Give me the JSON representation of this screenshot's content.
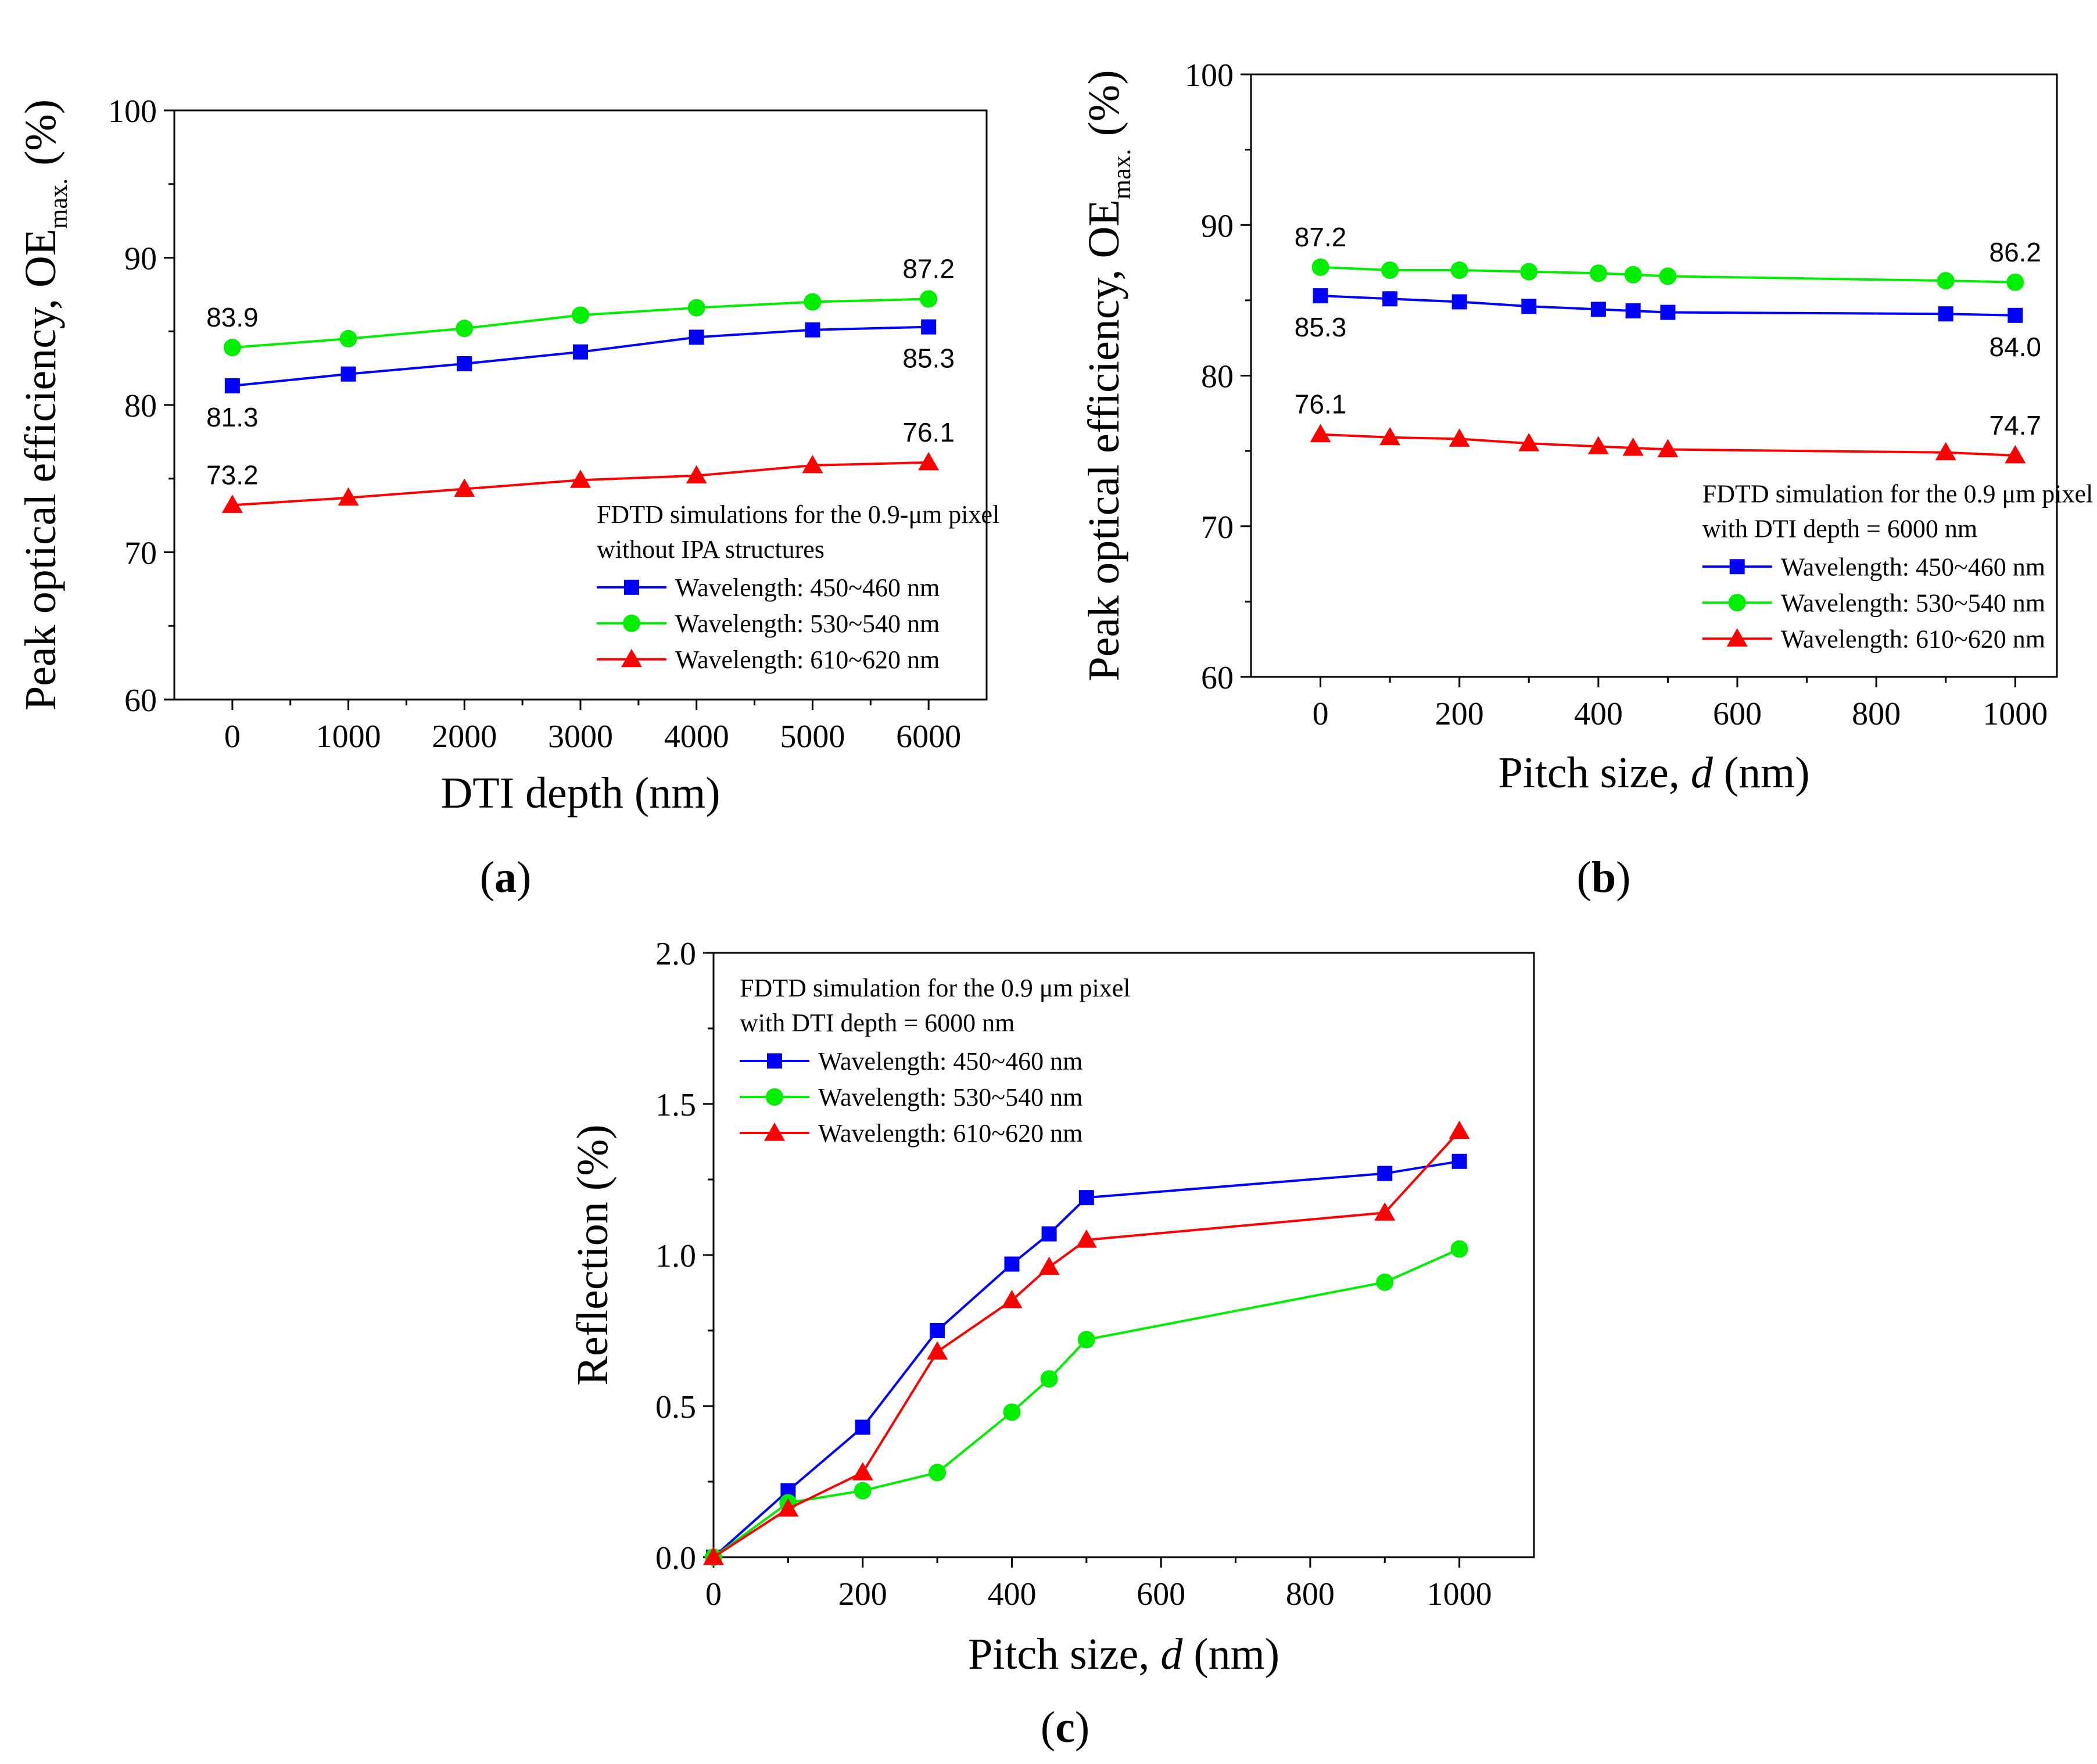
{
  "figure": {
    "panels": [
      "(a)",
      "(b)",
      "(c)"
    ]
  },
  "chart_data": [
    {
      "id": "a",
      "panel_label": "a",
      "type": "line",
      "title": "",
      "xlabel": "DTI depth (nm)",
      "ylabel_main": "Peak optical efficiency, OE",
      "ylabel_sub": "max.",
      "ylabel_unit": "(%)",
      "xlim": [
        -500,
        6500
      ],
      "ylim": [
        60,
        100
      ],
      "xticks": [
        0,
        1000,
        2000,
        3000,
        4000,
        5000,
        6000
      ],
      "yticks": [
        60,
        70,
        80,
        90,
        100
      ],
      "legend_title_lines": [
        "FDTD simulations for the 0.9-μm pixel",
        "without IPA structures"
      ],
      "legend_placement": "bottom-right",
      "x": [
        0,
        1000,
        2000,
        3000,
        4000,
        5000,
        6000
      ],
      "series": [
        {
          "name": "Wavelength: 450~460 nm",
          "color": "#0000ff",
          "marker": "square",
          "values": [
            81.3,
            82.1,
            82.8,
            83.6,
            84.6,
            85.1,
            85.3
          ]
        },
        {
          "name": "Wavelength: 530~540 nm",
          "color": "#00ee00",
          "marker": "circle",
          "values": [
            83.9,
            84.5,
            85.2,
            86.1,
            86.6,
            87.0,
            87.2
          ]
        },
        {
          "name": "Wavelength: 610~620 nm",
          "color": "#ff0000",
          "marker": "triangle",
          "values": [
            73.2,
            73.7,
            74.3,
            74.9,
            75.2,
            75.9,
            76.1
          ]
        }
      ],
      "annotations": [
        {
          "text": "83.9",
          "x": 0,
          "y": 83.9,
          "pos": "above"
        },
        {
          "text": "81.3",
          "x": 0,
          "y": 81.3,
          "pos": "below"
        },
        {
          "text": "87.2",
          "x": 6000,
          "y": 87.2,
          "pos": "above"
        },
        {
          "text": "85.3",
          "x": 6000,
          "y": 85.3,
          "pos": "below"
        },
        {
          "text": "73.2",
          "x": 0,
          "y": 73.2,
          "pos": "above"
        },
        {
          "text": "76.1",
          "x": 6000,
          "y": 76.1,
          "pos": "above"
        }
      ]
    },
    {
      "id": "b",
      "panel_label": "b",
      "type": "line",
      "title": "",
      "xlabel_main": "Pitch size, ",
      "xlabel_italic": "d",
      "xlabel_unit": " (nm)",
      "ylabel_main": "Peak optical efficiency, OE",
      "ylabel_sub": "max.",
      "ylabel_unit": "(%)",
      "xlim": [
        -100,
        1060
      ],
      "ylim": [
        60,
        100
      ],
      "xticks": [
        0,
        200,
        400,
        600,
        800,
        1000
      ],
      "yticks": [
        60,
        70,
        80,
        90,
        100
      ],
      "legend_title_lines": [
        "FDTD simulation for the 0.9 μm pixel",
        "with DTI depth = 6000 nm"
      ],
      "legend_placement": "bottom-right",
      "x": [
        0,
        100,
        200,
        300,
        400,
        450,
        500,
        900,
        1000
      ],
      "series": [
        {
          "name": "Wavelength: 450~460 nm",
          "color": "#0000ff",
          "marker": "square",
          "values": [
            85.3,
            85.1,
            84.9,
            84.6,
            84.4,
            84.3,
            84.2,
            84.1,
            84.0
          ]
        },
        {
          "name": "Wavelength: 530~540 nm",
          "color": "#00ee00",
          "marker": "circle",
          "values": [
            87.2,
            87.0,
            87.0,
            86.9,
            86.8,
            86.7,
            86.6,
            86.3,
            86.2
          ]
        },
        {
          "name": "Wavelength: 610~620 nm",
          "color": "#ff0000",
          "marker": "triangle",
          "values": [
            76.1,
            75.9,
            75.8,
            75.5,
            75.3,
            75.2,
            75.1,
            74.9,
            74.7
          ]
        }
      ],
      "annotations": [
        {
          "text": "87.2",
          "x": 0,
          "y": 87.2,
          "pos": "above"
        },
        {
          "text": "85.3",
          "x": 0,
          "y": 85.3,
          "pos": "below"
        },
        {
          "text": "86.2",
          "x": 1000,
          "y": 86.2,
          "pos": "above"
        },
        {
          "text": "84.0",
          "x": 1000,
          "y": 84.0,
          "pos": "below"
        },
        {
          "text": "76.1",
          "x": 0,
          "y": 76.1,
          "pos": "above"
        },
        {
          "text": "74.7",
          "x": 1000,
          "y": 74.7,
          "pos": "above"
        }
      ]
    },
    {
      "id": "c",
      "panel_label": "c",
      "type": "line",
      "title": "",
      "xlabel_main": "Pitch size, ",
      "xlabel_italic": "d",
      "xlabel_unit": " (nm)",
      "ylabel": "Reflection (%)",
      "xlim": [
        0,
        1100
      ],
      "ylim": [
        0,
        2.0
      ],
      "xticks": [
        0,
        200,
        400,
        600,
        800,
        1000
      ],
      "yticks": [
        0.0,
        0.5,
        1.0,
        1.5,
        2.0
      ],
      "ytick_labels": [
        "0.0",
        "0.5",
        "1.0",
        "1.5",
        "2.0"
      ],
      "legend_title_lines": [
        "FDTD simulation for the 0.9 μm pixel",
        "with DTI depth = 6000 nm"
      ],
      "legend_placement": "top-left",
      "x": [
        0,
        100,
        200,
        300,
        400,
        450,
        500,
        900,
        1000
      ],
      "series": [
        {
          "name": "Wavelength: 450~460 nm",
          "color": "#0000ff",
          "marker": "square",
          "values": [
            0.0,
            0.22,
            0.43,
            0.75,
            0.97,
            1.07,
            1.19,
            1.27,
            1.31
          ]
        },
        {
          "name": "Wavelength: 530~540 nm",
          "color": "#00ee00",
          "marker": "circle",
          "values": [
            0.0,
            0.18,
            0.22,
            0.28,
            0.48,
            0.59,
            0.72,
            0.91,
            1.02
          ]
        },
        {
          "name": "Wavelength: 610~620 nm",
          "color": "#ff0000",
          "marker": "triangle",
          "values": [
            0.0,
            0.16,
            0.28,
            0.68,
            0.85,
            0.96,
            1.05,
            1.14,
            1.41
          ]
        }
      ],
      "annotations": []
    }
  ]
}
